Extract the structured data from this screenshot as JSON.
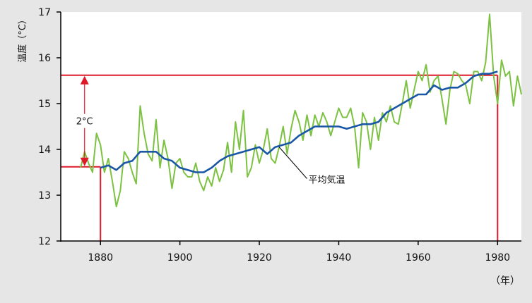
{
  "chart_data": {
    "type": "line",
    "ylabel": "温度（°C）",
    "xunit": "（年）",
    "xlim": [
      1870,
      1986
    ],
    "ylim": [
      12,
      17
    ],
    "x_ticks": [
      1880,
      1900,
      1920,
      1940,
      1960,
      1980
    ],
    "y_ticks": [
      12,
      13,
      14,
      15,
      16,
      17
    ],
    "grid": false,
    "series": [
      {
        "name": "",
        "color": "#7cc242",
        "x": [
          1875,
          1876,
          1877,
          1878,
          1879,
          1880,
          1881,
          1882,
          1883,
          1884,
          1885,
          1886,
          1887,
          1888,
          1889,
          1890,
          1891,
          1892,
          1893,
          1894,
          1895,
          1896,
          1897,
          1898,
          1899,
          1900,
          1901,
          1902,
          1903,
          1904,
          1905,
          1906,
          1907,
          1908,
          1909,
          1910,
          1911,
          1912,
          1913,
          1914,
          1915,
          1916,
          1917,
          1918,
          1919,
          1920,
          1921,
          1922,
          1923,
          1924,
          1925,
          1926,
          1927,
          1928,
          1929,
          1930,
          1931,
          1932,
          1933,
          1934,
          1935,
          1936,
          1937,
          1938,
          1939,
          1940,
          1941,
          1942,
          1943,
          1944,
          1945,
          1946,
          1947,
          1948,
          1949,
          1950,
          1951,
          1952,
          1953,
          1954,
          1955,
          1956,
          1957,
          1958,
          1959,
          1960,
          1961,
          1962,
          1963,
          1964,
          1965,
          1966,
          1967,
          1968,
          1969,
          1970,
          1971,
          1972,
          1973,
          1974,
          1975,
          1976,
          1977,
          1978,
          1979,
          1980,
          1981,
          1982,
          1983,
          1984,
          1985,
          1986
        ],
        "values": [
          13.6,
          13.95,
          13.7,
          13.5,
          14.35,
          14.1,
          13.5,
          13.8,
          13.3,
          12.75,
          13.1,
          13.95,
          13.8,
          13.5,
          13.25,
          14.95,
          14.35,
          13.9,
          13.75,
          14.65,
          13.6,
          14.2,
          13.8,
          13.15,
          13.7,
          13.8,
          13.5,
          13.4,
          13.4,
          13.7,
          13.3,
          13.1,
          13.4,
          13.2,
          13.6,
          13.3,
          13.55,
          14.15,
          13.5,
          14.6,
          14.0,
          14.85,
          13.4,
          13.6,
          14.1,
          13.7,
          14.0,
          14.45,
          13.8,
          13.7,
          14.05,
          14.5,
          13.9,
          14.45,
          14.85,
          14.6,
          14.2,
          14.75,
          14.3,
          14.75,
          14.5,
          14.8,
          14.6,
          14.3,
          14.6,
          14.9,
          14.7,
          14.7,
          14.9,
          14.5,
          13.6,
          14.8,
          14.6,
          14.0,
          14.7,
          14.2,
          14.8,
          14.6,
          14.95,
          14.6,
          14.55,
          15.0,
          15.5,
          14.9,
          15.3,
          15.7,
          15.5,
          15.85,
          15.25,
          15.5,
          15.6,
          15.1,
          14.55,
          15.3,
          15.7,
          15.65,
          15.5,
          15.4,
          15.0,
          15.7,
          15.7,
          15.5,
          15.9,
          16.95,
          15.6,
          15.0,
          15.95,
          15.6,
          15.7,
          14.95,
          15.6,
          15.2
        ]
      },
      {
        "name": "平均気温",
        "color": "#1a56a6",
        "x": [
          1880,
          1882,
          1884,
          1886,
          1888,
          1890,
          1892,
          1894,
          1896,
          1898,
          1900,
          1902,
          1904,
          1906,
          1908,
          1910,
          1912,
          1914,
          1916,
          1918,
          1920,
          1922,
          1924,
          1926,
          1928,
          1930,
          1932,
          1934,
          1936,
          1938,
          1940,
          1942,
          1944,
          1946,
          1948,
          1950,
          1952,
          1954,
          1956,
          1958,
          1960,
          1962,
          1964,
          1966,
          1968,
          1970,
          1972,
          1974,
          1976,
          1978,
          1980
        ],
        "values": [
          13.6,
          13.65,
          13.55,
          13.7,
          13.75,
          13.95,
          13.95,
          13.95,
          13.8,
          13.75,
          13.6,
          13.55,
          13.5,
          13.5,
          13.6,
          13.75,
          13.85,
          13.9,
          13.95,
          14.0,
          14.05,
          13.9,
          14.05,
          14.1,
          14.15,
          14.3,
          14.4,
          14.5,
          14.5,
          14.5,
          14.5,
          14.45,
          14.5,
          14.55,
          14.55,
          14.6,
          14.8,
          14.9,
          15.0,
          15.1,
          15.2,
          15.2,
          15.4,
          15.3,
          15.35,
          15.35,
          15.45,
          15.6,
          15.65,
          15.65,
          15.7
        ]
      }
    ],
    "annotations": {
      "series_label": "平均気温",
      "diff_label": "2°C",
      "ref_low": {
        "x": 1880,
        "y": 13.62
      },
      "ref_high": {
        "x": 1980,
        "y": 15.62
      },
      "label_pointer_x": 1925
    },
    "colors": {
      "plot_bg": "#ffffff",
      "page_bg": "#e6e6e6",
      "reference": "#e0192a",
      "axis": "#000000"
    }
  }
}
